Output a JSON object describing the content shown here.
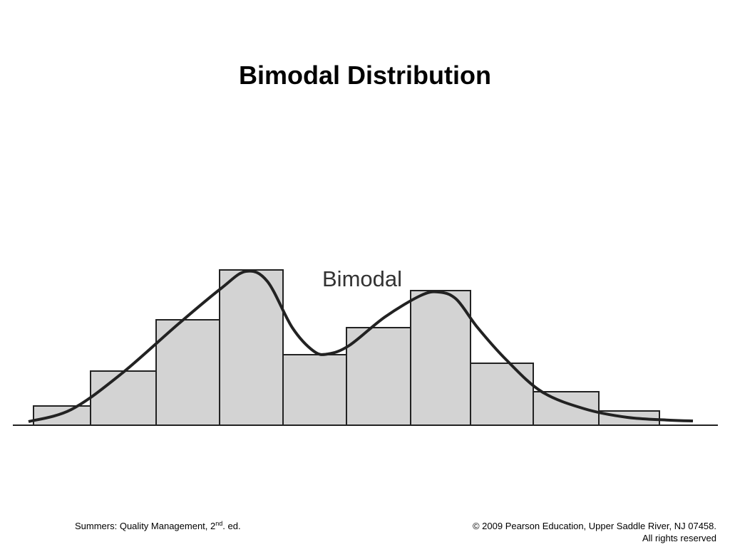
{
  "chart_data": {
    "type": "histogram",
    "title": "Bimodal Distribution",
    "annotation": "Bimodal",
    "bins": [
      0,
      80,
      172,
      261,
      350,
      439,
      529,
      613,
      701,
      793,
      878
    ],
    "values": [
      27,
      76,
      148,
      218,
      99,
      137,
      189,
      87,
      47,
      20
    ],
    "color": "#d3d3d3",
    "xlim": [
      -29,
      960
    ],
    "curve": {
      "x": [
        -7,
        53,
        123,
        203,
        263,
        298,
        328,
        363,
        393,
        413,
        443,
        493,
        543,
        568,
        593,
        623,
        663,
        713,
        773,
        833,
        893,
        925
      ],
      "y": [
        5,
        22,
        72,
        142,
        192,
        216,
        202,
        137,
        104,
        100,
        112,
        152,
        182,
        187,
        177,
        137,
        92,
        47,
        23,
        11,
        7,
        6
      ]
    }
  },
  "footer": {
    "left": [
      "Summers: Quality Management, 2",
      "nd",
      ". ed."
    ],
    "right": [
      "© 2009 Pearson Education, Upper Saddle River, NJ 07458.",
      "All rights reserved"
    ]
  }
}
